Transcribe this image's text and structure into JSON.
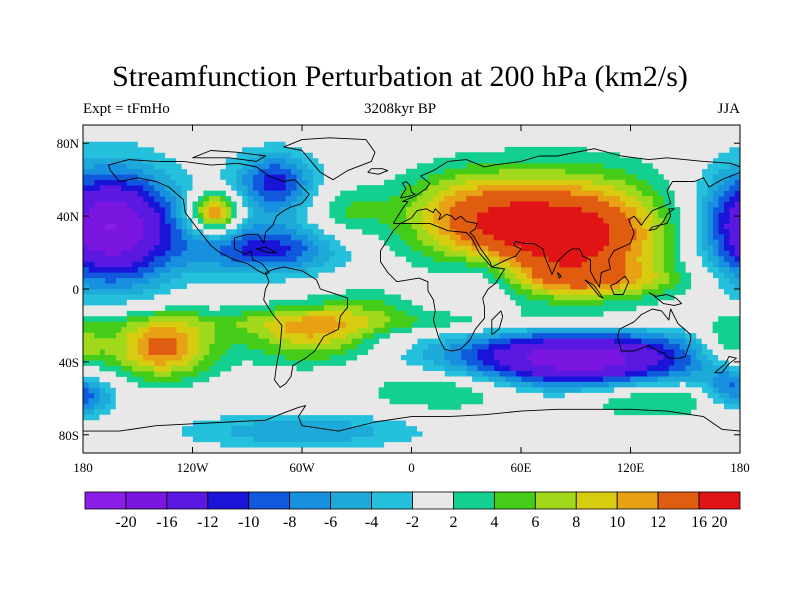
{
  "title": "Streamfunction Perturbation at 200 hPa (km2/s)",
  "subtitle_left": "Expt = tFmHo",
  "subtitle_center": "3208kyr BP",
  "subtitle_right": "JJA",
  "chart_data": {
    "type": "heatmap",
    "title": "Streamfunction Perturbation at 200 hPa (km2/s)",
    "xlim": [
      -180,
      180
    ],
    "ylim": [
      -90,
      90
    ],
    "x_ticks": [
      {
        "value": -180,
        "label": "180"
      },
      {
        "value": -120,
        "label": "120W"
      },
      {
        "value": -60,
        "label": "60W"
      },
      {
        "value": 0,
        "label": "0"
      },
      {
        "value": 60,
        "label": "60E"
      },
      {
        "value": 120,
        "label": "120E"
      },
      {
        "value": 180,
        "label": "180"
      }
    ],
    "y_ticks": [
      {
        "value": 80,
        "label": "80N"
      },
      {
        "value": 40,
        "label": "40N"
      },
      {
        "value": 0,
        "label": "0"
      },
      {
        "value": -40,
        "label": "40S"
      },
      {
        "value": -80,
        "label": "80S"
      }
    ],
    "levels": [
      -20,
      -16,
      -12,
      -10,
      -8,
      -6,
      -4,
      -2,
      2,
      4,
      6,
      8,
      10,
      12,
      16,
      20
    ],
    "colors": [
      "#8a1ee6",
      "#7a16df",
      "#5a18e0",
      "#1a14d8",
      "#1058dc",
      "#1890e0",
      "#1eaad8",
      "#24c0dc",
      "#e8e8e8",
      "#14d090",
      "#44cc18",
      "#a0d81c",
      "#d8cc10",
      "#e8a014",
      "#e05c10",
      "#e01414"
    ],
    "features": [
      {
        "lon": 85,
        "lat": 30,
        "amp": 19,
        "slon": 40,
        "slat": 22
      },
      {
        "lon": 30,
        "lat": 42,
        "amp": 8,
        "slon": 28,
        "slat": 16
      },
      {
        "lon": -108,
        "lat": 42,
        "amp": 14,
        "slon": 9,
        "slat": 8
      },
      {
        "lon": -75,
        "lat": 58,
        "amp": -11,
        "slon": 16,
        "slat": 12
      },
      {
        "lon": -80,
        "lat": 22,
        "amp": -11,
        "slon": 28,
        "slat": 10
      },
      {
        "lon": -165,
        "lat": 34,
        "amp": -20,
        "slon": 26,
        "slat": 22
      },
      {
        "lon": 195,
        "lat": 34,
        "amp": -20,
        "slon": 26,
        "slat": 22
      },
      {
        "lon": -137,
        "lat": -32,
        "amp": 13,
        "slon": 20,
        "slat": 12
      },
      {
        "lon": -55,
        "lat": -25,
        "amp": 9,
        "slon": 26,
        "slat": 11
      },
      {
        "lon": 90,
        "lat": -38,
        "amp": -19,
        "slon": 50,
        "slat": 12
      },
      {
        "lon": -60,
        "lat": -78,
        "amp": -6,
        "slon": 45,
        "slat": 7
      },
      {
        "lon": 0,
        "lat": -18,
        "amp": 4,
        "slon": 120,
        "slat": 5
      },
      {
        "lon": 20,
        "lat": -55,
        "amp": 6,
        "slon": 30,
        "slat": 8
      },
      {
        "lon": 130,
        "lat": -60,
        "amp": 6,
        "slon": 30,
        "slat": 7
      },
      {
        "lon": 40,
        "lat": 5,
        "amp": -6,
        "slon": 18,
        "slat": 10
      },
      {
        "lon": 100,
        "lat": 5,
        "amp": 5,
        "slon": 40,
        "slat": 6
      },
      {
        "lon": 175,
        "lat": -30,
        "amp": 7,
        "slon": 12,
        "slat": 10
      },
      {
        "lon": -185,
        "lat": -30,
        "amp": 7,
        "slon": 12,
        "slat": 10
      },
      {
        "lon": 175,
        "lat": -55,
        "amp": -8,
        "slon": 10,
        "slat": 8
      },
      {
        "lon": -180,
        "lat": -58,
        "amp": -9,
        "slon": 12,
        "slat": 8
      },
      {
        "lon": -35,
        "lat": 42,
        "amp": 4,
        "slon": 15,
        "slat": 10
      },
      {
        "lon": -25,
        "lat": -8,
        "amp": 3,
        "slon": 18,
        "slat": 6
      }
    ]
  }
}
